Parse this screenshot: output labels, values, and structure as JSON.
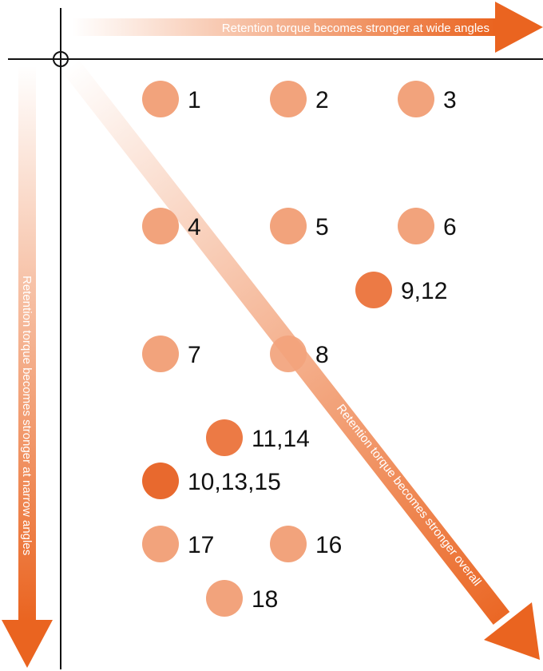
{
  "arrows": {
    "wide": "Retention torque becomes stronger at wide angles",
    "narrow": "Retention torque becomes stronger at narrow angles",
    "overall": "Retention torque becomes stronger overall"
  },
  "colors": {
    "light_dot": "#F2A37C",
    "medium_dot": "#EC7A45",
    "dark_dot": "#E8692E",
    "arrow": "#EA6420",
    "axis": "#111111",
    "label": "#111111"
  },
  "points": [
    {
      "label": "1",
      "shade": "light"
    },
    {
      "label": "2",
      "shade": "light"
    },
    {
      "label": "3",
      "shade": "light"
    },
    {
      "label": "4",
      "shade": "light"
    },
    {
      "label": "5",
      "shade": "light"
    },
    {
      "label": "6",
      "shade": "light"
    },
    {
      "label": "9,12",
      "shade": "medium"
    },
    {
      "label": "7",
      "shade": "light"
    },
    {
      "label": "8",
      "shade": "light"
    },
    {
      "label": "11,14",
      "shade": "medium"
    },
    {
      "label": "10,13,15",
      "shade": "dark"
    },
    {
      "label": "17",
      "shade": "light"
    },
    {
      "label": "16",
      "shade": "light"
    },
    {
      "label": "18",
      "shade": "light"
    }
  ]
}
